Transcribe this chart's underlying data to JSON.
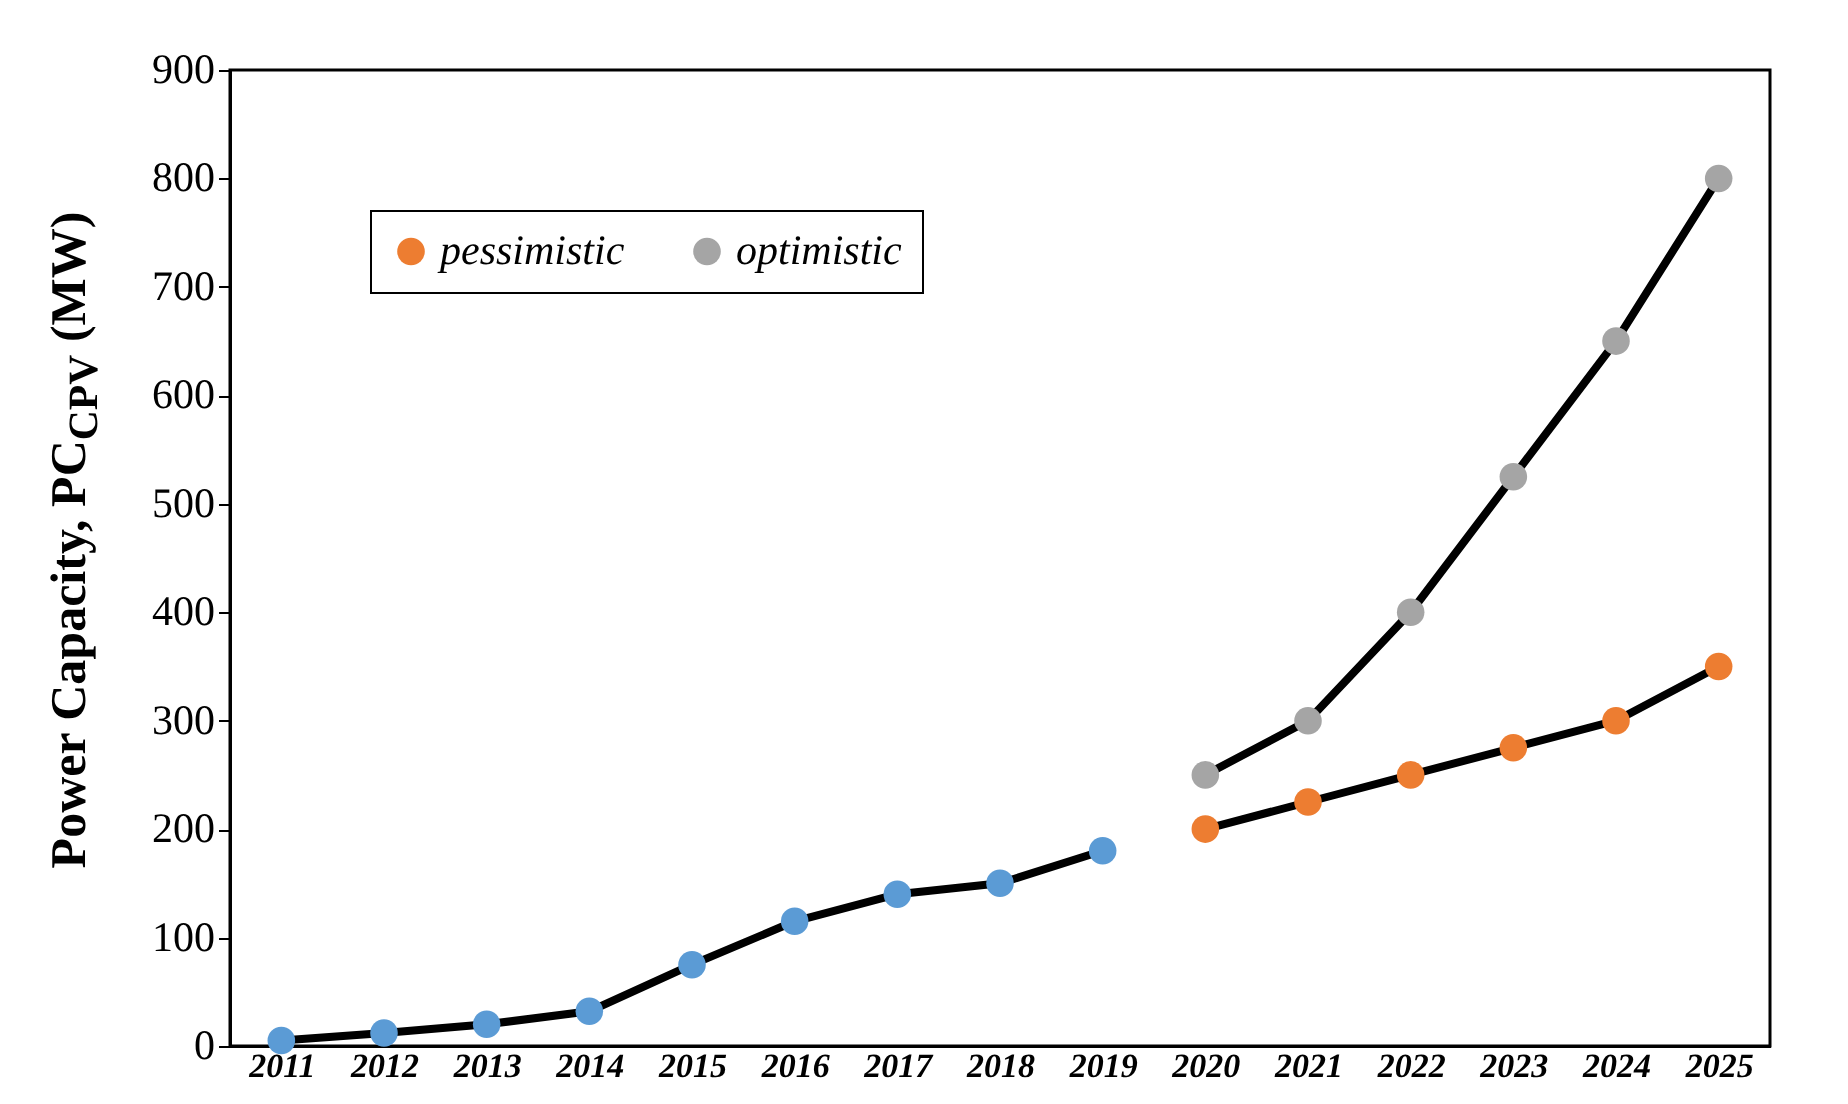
{
  "chart_data": {
    "type": "line",
    "ylabel": "Power Capacity, PC$_{CPV}$ (MW)",
    "categories": [
      "2011",
      "2012",
      "2013",
      "2014",
      "2015",
      "2016",
      "2017",
      "2018",
      "2019",
      "2020",
      "2021",
      "2022",
      "2023",
      "2024",
      "2025"
    ],
    "series": [
      {
        "color": "#5b9bd5",
        "values": [
          5,
          12,
          20,
          32,
          75,
          115,
          140,
          150,
          180,
          null,
          null,
          null,
          null,
          null,
          null
        ]
      },
      {
        "name": "pessimistic",
        "color": "#ed7d31",
        "values": [
          null,
          null,
          null,
          null,
          null,
          null,
          null,
          null,
          null,
          200,
          225,
          250,
          275,
          300,
          350
        ]
      },
      {
        "name": "optimistic",
        "color": "#a5a5a5",
        "values": [
          null,
          null,
          null,
          null,
          null,
          null,
          null,
          null,
          null,
          250,
          300,
          400,
          525,
          650,
          800
        ]
      }
    ],
    "ylim": [
      0,
      900
    ],
    "yticks": [
      0,
      100,
      200,
      300,
      400,
      500,
      600,
      700,
      800,
      900
    ],
    "legend": "top left",
    "marker": "circle",
    "line_style": "solid",
    "grid": false
  }
}
